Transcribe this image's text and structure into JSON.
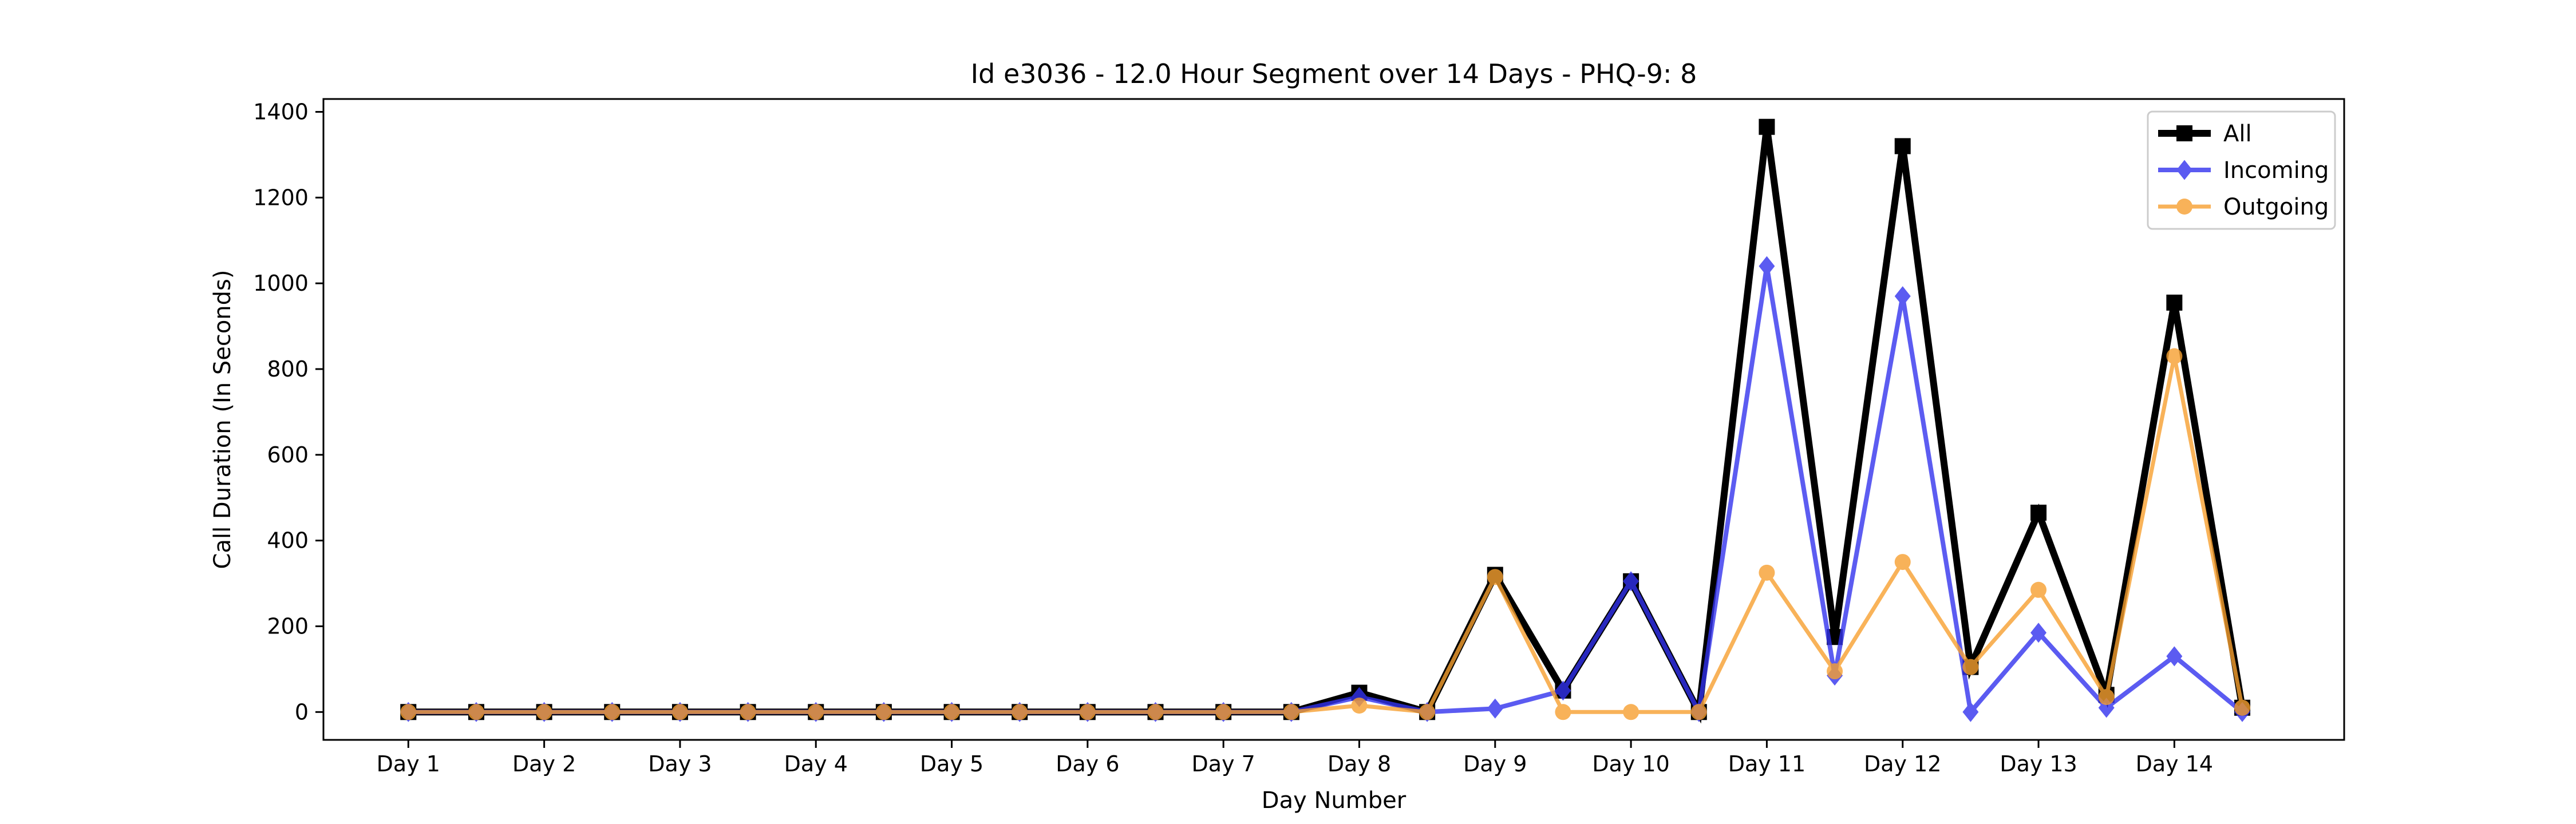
{
  "chart_data": {
    "type": "line",
    "title": "Id e3036 - 12.0 Hour Segment over 14 Days - PHQ-9: 8",
    "xlabel": "Day Number",
    "ylabel": "Call Duration (In Seconds)",
    "ylim": [
      -65,
      1430
    ],
    "xlim": [
      -1.25,
      28.5
    ],
    "yticks": [
      0,
      200,
      400,
      600,
      800,
      1000,
      1200,
      1400
    ],
    "xticks": [
      {
        "x": 0,
        "label": "Day 1"
      },
      {
        "x": 2,
        "label": "Day 2"
      },
      {
        "x": 4,
        "label": "Day 3"
      },
      {
        "x": 6,
        "label": "Day 4"
      },
      {
        "x": 8,
        "label": "Day 5"
      },
      {
        "x": 10,
        "label": "Day 6"
      },
      {
        "x": 12,
        "label": "Day 7"
      },
      {
        "x": 14,
        "label": "Day 8"
      },
      {
        "x": 16,
        "label": "Day 9"
      },
      {
        "x": 18,
        "label": "Day 10"
      },
      {
        "x": 20,
        "label": "Day 11"
      },
      {
        "x": 22,
        "label": "Day 12"
      },
      {
        "x": 24,
        "label": "Day 13"
      },
      {
        "x": 26,
        "label": "Day 14"
      }
    ],
    "x": [
      0,
      1,
      2,
      3,
      4,
      5,
      6,
      7,
      8,
      9,
      10,
      11,
      12,
      13,
      14,
      15,
      16,
      17,
      18,
      19,
      20,
      21,
      22,
      23,
      24,
      25,
      26,
      27
    ],
    "series": [
      {
        "name": "All",
        "color": "#000000",
        "marker": "square",
        "values": [
          0,
          0,
          0,
          0,
          0,
          0,
          0,
          0,
          0,
          0,
          0,
          0,
          0,
          0,
          45,
          0,
          320,
          50,
          305,
          0,
          1365,
          175,
          1320,
          105,
          465,
          40,
          955,
          10
        ]
      },
      {
        "name": "Incoming",
        "color": "#3333ee",
        "marker": "diamond",
        "values": [
          0,
          0,
          0,
          0,
          0,
          0,
          0,
          0,
          0,
          0,
          0,
          0,
          0,
          0,
          35,
          0,
          8,
          50,
          305,
          0,
          1040,
          85,
          970,
          0,
          185,
          10,
          130,
          0
        ]
      },
      {
        "name": "Outgoing",
        "color": "#f7a030",
        "marker": "circle",
        "values": [
          0,
          0,
          0,
          0,
          0,
          0,
          0,
          0,
          0,
          0,
          0,
          0,
          0,
          0,
          15,
          0,
          315,
          0,
          0,
          0,
          325,
          95,
          350,
          105,
          285,
          35,
          830,
          10
        ]
      }
    ],
    "legend_position": "top-right",
    "grid": false
  }
}
